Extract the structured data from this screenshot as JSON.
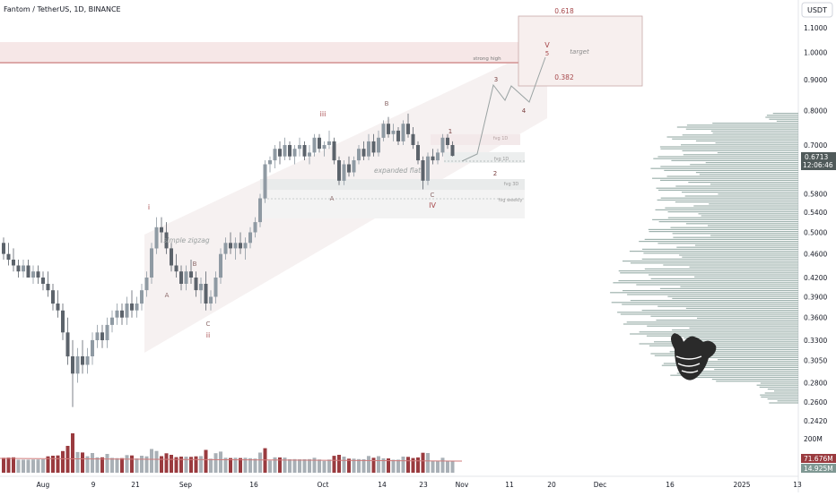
{
  "header": {
    "symbol_title": "Fantom / TetherUS, 1D, BINANCE",
    "currency_button": "USDT"
  },
  "colors": {
    "up_candle": "#8f9aa3",
    "down_candle": "#5c636b",
    "volume_up": "#a9b0b6",
    "volume_down": "#9a3b3f",
    "volume_profile": "#7f9893",
    "channel_fill": "#f4eeee",
    "resistance_line": "#c26a6a",
    "wave_label": "#a7494c",
    "price_tag": "#505a5a"
  },
  "chart_data": {
    "type": "candlestick",
    "title": "Fantom / TetherUS, 1D, BINANCE",
    "y_scale": "log",
    "y_ticks": [
      "1.1000",
      "1.0000",
      "0.9000",
      "0.8000",
      "0.7000",
      "0.6500",
      "0.5800",
      "0.5400",
      "0.5000",
      "0.4600",
      "0.4200",
      "0.3900",
      "0.3600",
      "0.3300",
      "0.3050",
      "0.2800",
      "0.2600",
      "0.2420"
    ],
    "x_ticks": [
      "Aug",
      "9",
      "21",
      "Sep",
      "16",
      "Oct",
      "14",
      "23",
      "Nov",
      "11",
      "20",
      "Dec",
      "16",
      "2025",
      "13"
    ],
    "last_price": "0.6713",
    "countdown": "12:06:46",
    "volume_axis_label": "200M",
    "volume_last": "71.676M",
    "volume_ma": "14.925M",
    "series": [
      {
        "name": "candles",
        "values": [
          [
            0.48,
            0.49,
            0.45,
            0.46
          ],
          [
            0.46,
            0.48,
            0.44,
            0.45
          ],
          [
            0.45,
            0.47,
            0.43,
            0.44
          ],
          [
            0.44,
            0.45,
            0.42,
            0.43
          ],
          [
            0.43,
            0.45,
            0.42,
            0.44
          ],
          [
            0.44,
            0.45,
            0.42,
            0.42
          ],
          [
            0.42,
            0.44,
            0.41,
            0.43
          ],
          [
            0.43,
            0.44,
            0.41,
            0.42
          ],
          [
            0.42,
            0.43,
            0.4,
            0.41
          ],
          [
            0.41,
            0.43,
            0.39,
            0.4
          ],
          [
            0.4,
            0.41,
            0.37,
            0.38
          ],
          [
            0.38,
            0.4,
            0.36,
            0.37
          ],
          [
            0.37,
            0.38,
            0.33,
            0.34
          ],
          [
            0.34,
            0.36,
            0.3,
            0.31
          ],
          [
            0.31,
            0.33,
            0.255,
            0.29
          ],
          [
            0.29,
            0.32,
            0.28,
            0.31
          ],
          [
            0.31,
            0.33,
            0.29,
            0.3
          ],
          [
            0.3,
            0.32,
            0.29,
            0.31
          ],
          [
            0.31,
            0.34,
            0.3,
            0.33
          ],
          [
            0.33,
            0.35,
            0.32,
            0.34
          ],
          [
            0.34,
            0.35,
            0.32,
            0.33
          ],
          [
            0.33,
            0.36,
            0.32,
            0.35
          ],
          [
            0.35,
            0.37,
            0.34,
            0.36
          ],
          [
            0.36,
            0.38,
            0.35,
            0.37
          ],
          [
            0.37,
            0.38,
            0.35,
            0.36
          ],
          [
            0.36,
            0.39,
            0.35,
            0.38
          ],
          [
            0.38,
            0.4,
            0.36,
            0.37
          ],
          [
            0.37,
            0.39,
            0.36,
            0.38
          ],
          [
            0.38,
            0.41,
            0.37,
            0.4
          ],
          [
            0.4,
            0.43,
            0.39,
            0.42
          ],
          [
            0.42,
            0.48,
            0.41,
            0.47
          ],
          [
            0.47,
            0.53,
            0.46,
            0.51
          ],
          [
            0.51,
            0.53,
            0.48,
            0.5
          ],
          [
            0.5,
            0.52,
            0.46,
            0.47
          ],
          [
            0.47,
            0.48,
            0.43,
            0.44
          ],
          [
            0.44,
            0.46,
            0.42,
            0.43
          ],
          [
            0.43,
            0.44,
            0.4,
            0.41
          ],
          [
            0.41,
            0.44,
            0.4,
            0.43
          ],
          [
            0.43,
            0.45,
            0.41,
            0.42
          ],
          [
            0.42,
            0.43,
            0.39,
            0.4
          ],
          [
            0.4,
            0.42,
            0.38,
            0.41
          ],
          [
            0.41,
            0.43,
            0.37,
            0.38
          ],
          [
            0.38,
            0.4,
            0.37,
            0.39
          ],
          [
            0.39,
            0.43,
            0.38,
            0.42
          ],
          [
            0.42,
            0.47,
            0.41,
            0.46
          ],
          [
            0.46,
            0.49,
            0.45,
            0.48
          ],
          [
            0.48,
            0.5,
            0.46,
            0.47
          ],
          [
            0.47,
            0.49,
            0.45,
            0.48
          ],
          [
            0.48,
            0.5,
            0.46,
            0.47
          ],
          [
            0.47,
            0.49,
            0.45,
            0.48
          ],
          [
            0.48,
            0.51,
            0.47,
            0.5
          ],
          [
            0.5,
            0.53,
            0.49,
            0.52
          ],
          [
            0.52,
            0.58,
            0.51,
            0.57
          ],
          [
            0.57,
            0.66,
            0.56,
            0.65
          ],
          [
            0.65,
            0.67,
            0.63,
            0.66
          ],
          [
            0.66,
            0.7,
            0.64,
            0.69
          ],
          [
            0.69,
            0.71,
            0.65,
            0.67
          ],
          [
            0.67,
            0.72,
            0.66,
            0.7
          ],
          [
            0.7,
            0.71,
            0.66,
            0.67
          ],
          [
            0.67,
            0.7,
            0.65,
            0.69
          ],
          [
            0.69,
            0.72,
            0.67,
            0.7
          ],
          [
            0.7,
            0.71,
            0.66,
            0.67
          ],
          [
            0.67,
            0.7,
            0.65,
            0.68
          ],
          [
            0.68,
            0.73,
            0.67,
            0.72
          ],
          [
            0.72,
            0.73,
            0.68,
            0.69
          ],
          [
            0.69,
            0.71,
            0.67,
            0.7
          ],
          [
            0.7,
            0.74,
            0.69,
            0.71
          ],
          [
            0.71,
            0.72,
            0.65,
            0.66
          ],
          [
            0.66,
            0.67,
            0.6,
            0.61
          ],
          [
            0.61,
            0.66,
            0.6,
            0.65
          ],
          [
            0.65,
            0.67,
            0.62,
            0.63
          ],
          [
            0.63,
            0.67,
            0.62,
            0.66
          ],
          [
            0.66,
            0.7,
            0.65,
            0.69
          ],
          [
            0.69,
            0.71,
            0.66,
            0.67
          ],
          [
            0.67,
            0.73,
            0.66,
            0.71
          ],
          [
            0.71,
            0.73,
            0.67,
            0.68
          ],
          [
            0.68,
            0.74,
            0.67,
            0.72
          ],
          [
            0.72,
            0.77,
            0.71,
            0.76
          ],
          [
            0.76,
            0.78,
            0.72,
            0.73
          ],
          [
            0.73,
            0.76,
            0.71,
            0.74
          ],
          [
            0.74,
            0.75,
            0.7,
            0.71
          ],
          [
            0.71,
            0.77,
            0.7,
            0.76
          ],
          [
            0.76,
            0.79,
            0.72,
            0.73
          ],
          [
            0.73,
            0.75,
            0.69,
            0.7
          ],
          [
            0.7,
            0.71,
            0.65,
            0.66
          ],
          [
            0.66,
            0.67,
            0.59,
            0.61
          ],
          [
            0.61,
            0.68,
            0.6,
            0.67
          ],
          [
            0.67,
            0.69,
            0.65,
            0.66
          ],
          [
            0.66,
            0.69,
            0.65,
            0.68
          ],
          [
            0.68,
            0.73,
            0.67,
            0.72
          ],
          [
            0.72,
            0.73,
            0.69,
            0.7
          ],
          [
            0.7,
            0.71,
            0.67,
            0.6713
          ]
        ]
      }
    ],
    "annotations": [
      "0.618",
      "0.382",
      "target",
      "strong high",
      "V",
      "5",
      "3",
      "4",
      "1",
      "2",
      "B",
      "iii",
      "A",
      "C",
      "IV",
      "i",
      "ii",
      "A",
      "B",
      "C",
      "simple zigzag",
      "expanded flat",
      "fvg 1D",
      "fvg 1D",
      "fvg 3D",
      "fvg weekly"
    ]
  }
}
